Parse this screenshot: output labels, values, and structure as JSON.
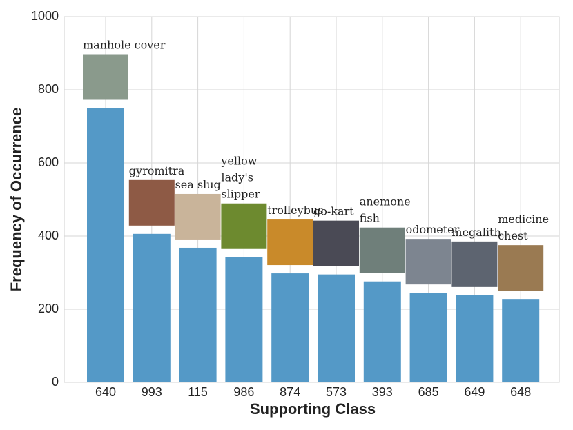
{
  "chart_data": {
    "type": "bar",
    "xlabel": "Supporting Class",
    "ylabel": "Frequency of Occurrence",
    "categories": [
      "640",
      "993",
      "115",
      "986",
      "874",
      "573",
      "393",
      "685",
      "649",
      "648"
    ],
    "values": [
      750,
      406,
      368,
      342,
      298,
      295,
      276,
      245,
      238,
      228
    ],
    "annotations": [
      [
        "manhole cover"
      ],
      [
        "gyromitra"
      ],
      [
        "sea slug"
      ],
      [
        "yellow",
        "lady's",
        "slipper"
      ],
      [
        "trolleybus"
      ],
      [
        "go-kart"
      ],
      [
        "anemone",
        "fish"
      ],
      [
        "odometer"
      ],
      [
        "megalith"
      ],
      [
        "medicine",
        "chest"
      ]
    ],
    "color": "#5499c7",
    "ylim": [
      0,
      1000
    ],
    "yticks": [
      0,
      200,
      400,
      600,
      800,
      1000
    ],
    "grid": true
  }
}
